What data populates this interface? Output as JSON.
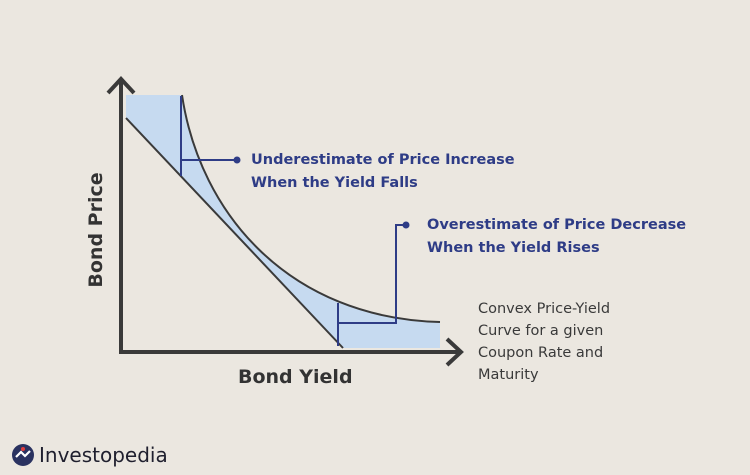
{
  "colors": {
    "background": "#ebe7e0",
    "fill": "#c6daf0",
    "annotation": "#2e3c86",
    "axis": "#3a3a3a"
  },
  "axes": {
    "x_label": "Bond Yield",
    "y_label": "Bond Price"
  },
  "annotations": {
    "underestimate": [
      "Underestimate of Price Increase",
      "When the Yield Falls"
    ],
    "overestimate": [
      "Overestimate of Price Decrease",
      "When the Yield Rises"
    ],
    "curve": [
      "Convex Price-Yield",
      "Curve for a given",
      "Coupon Rate and",
      "Maturity"
    ]
  },
  "logo": {
    "text": "Investopedia"
  }
}
